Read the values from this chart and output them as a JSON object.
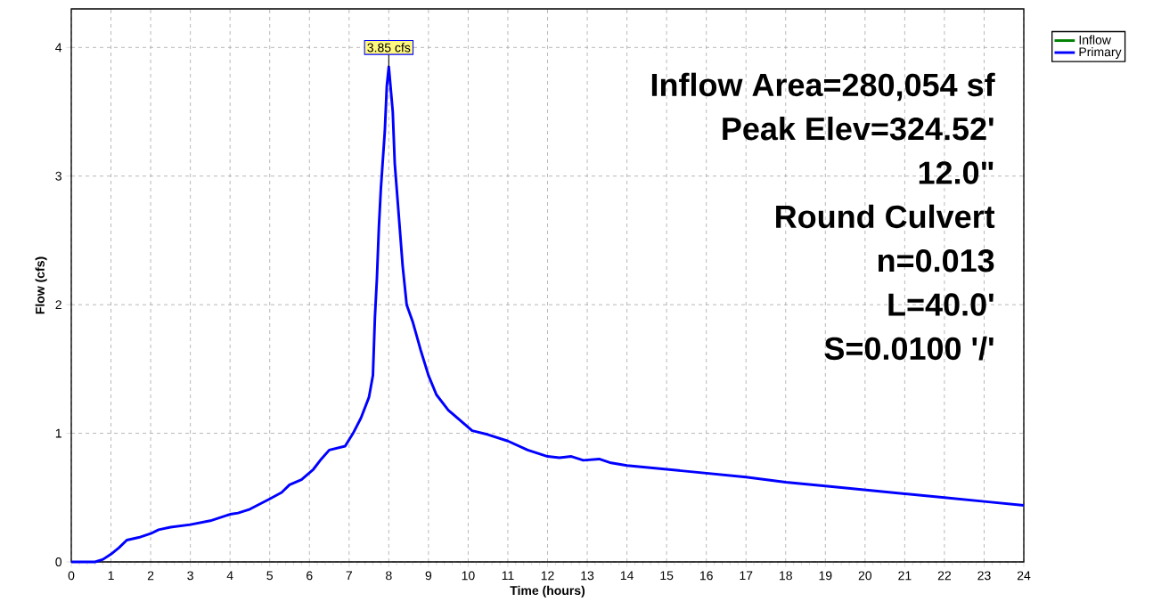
{
  "chart_data": {
    "type": "line",
    "xlabel": "Time  (hours)",
    "ylabel": "Flow  (cfs)",
    "xlim": [
      0,
      24
    ],
    "ylim": [
      0,
      4.3
    ],
    "xticks": [
      0,
      1,
      2,
      3,
      4,
      5,
      6,
      7,
      8,
      9,
      10,
      11,
      12,
      13,
      14,
      15,
      16,
      17,
      18,
      19,
      20,
      21,
      22,
      23,
      24
    ],
    "yticks": [
      0,
      1,
      2,
      3,
      4
    ],
    "grid": true,
    "legend": "top right",
    "line_style": "solid",
    "marker": "none",
    "series": [
      {
        "name": "Inflow",
        "color": "#008000"
      },
      {
        "name": "Primary",
        "color": "#0000ff",
        "x": [
          0,
          0.6,
          0.8,
          1.0,
          1.2,
          1.4,
          1.7,
          2.0,
          2.2,
          2.5,
          3.0,
          3.5,
          4.0,
          4.2,
          4.5,
          5.0,
          5.3,
          5.5,
          5.8,
          6.1,
          6.3,
          6.5,
          6.9,
          7.1,
          7.3,
          7.5,
          7.6,
          7.65,
          7.7,
          7.75,
          7.8,
          7.9,
          7.95,
          8.0,
          8.1,
          8.15,
          8.25,
          8.35,
          8.45,
          8.6,
          8.8,
          9.0,
          9.2,
          9.5,
          9.8,
          10.1,
          10.5,
          11.0,
          11.5,
          12.0,
          12.3,
          12.6,
          12.9,
          13.3,
          13.6,
          14,
          15,
          16,
          17,
          18,
          19,
          20,
          21,
          22,
          23,
          24
        ],
        "values": [
          0,
          0,
          0.02,
          0.06,
          0.11,
          0.17,
          0.19,
          0.22,
          0.25,
          0.27,
          0.29,
          0.32,
          0.37,
          0.38,
          0.41,
          0.49,
          0.54,
          0.6,
          0.64,
          0.72,
          0.8,
          0.87,
          0.9,
          1.0,
          1.12,
          1.28,
          1.45,
          1.9,
          2.2,
          2.6,
          2.9,
          3.35,
          3.7,
          3.85,
          3.5,
          3.1,
          2.7,
          2.3,
          2.0,
          1.87,
          1.65,
          1.45,
          1.3,
          1.18,
          1.1,
          1.02,
          0.99,
          0.94,
          0.87,
          0.82,
          0.81,
          0.82,
          0.79,
          0.8,
          0.77,
          0.75,
          0.72,
          0.69,
          0.66,
          0.62,
          0.59,
          0.56,
          0.53,
          0.5,
          0.47,
          0.44
        ]
      }
    ],
    "annotations": [
      {
        "text": "3.85 cfs",
        "x": 8,
        "y": 3.85
      },
      "Inflow Area=280,054 sf",
      "Peak Elev=324.52'",
      "12.0\"",
      "Round Culvert",
      "n=0.013",
      "L=40.0'",
      "S=0.0100 '/'"
    ]
  }
}
